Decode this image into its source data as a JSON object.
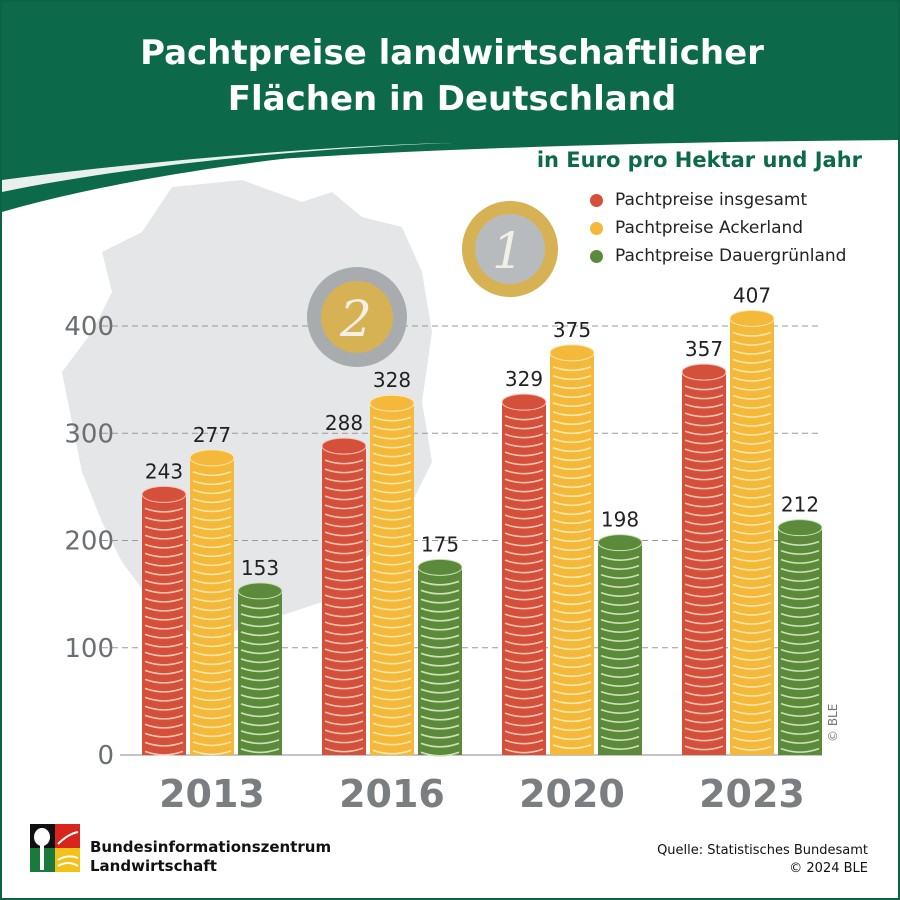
{
  "header": {
    "title_line1": "Pachtpreise landwirtschaftlicher",
    "title_line2": "Flächen in Deutschland",
    "subtitle": "in Euro pro Hektar und Jahr"
  },
  "footer": {
    "org_line1": "Bundesinformationszentrum",
    "org_line2": "Landwirtschaft",
    "source": "Quelle: Statistisches Bundesamt",
    "copyright": "© 2024 BLE",
    "side_credit": "© BLE"
  },
  "colors": {
    "header": "#0c6a4a",
    "red": "#d4503a",
    "yellow": "#f4b83a",
    "green": "#5b8a3a"
  },
  "chart_data": {
    "type": "bar",
    "title": "Pachtpreise landwirtschaftlicher Flächen in Deutschland",
    "ylabel": "in Euro pro Hektar und Jahr",
    "categories": [
      "2013",
      "2016",
      "2020",
      "2023"
    ],
    "series": [
      {
        "name": "Pachtpreise insgesamt",
        "color": "#d4503a",
        "stripe": "#f9c4b4",
        "values": [
          243,
          288,
          329,
          357
        ]
      },
      {
        "name": "Pachtpreise Ackerland",
        "color": "#f4b83a",
        "stripe": "#fde7a6",
        "values": [
          277,
          328,
          375,
          407
        ]
      },
      {
        "name": "Pachtpreise Dauergrünland",
        "color": "#5b8a3a",
        "stripe": "#cfe0b8",
        "values": [
          153,
          175,
          198,
          212
        ]
      }
    ],
    "yticks": [
      0,
      100,
      200,
      300,
      400
    ],
    "ylim": [
      0,
      400
    ],
    "grid": true,
    "legend": "top-right"
  }
}
